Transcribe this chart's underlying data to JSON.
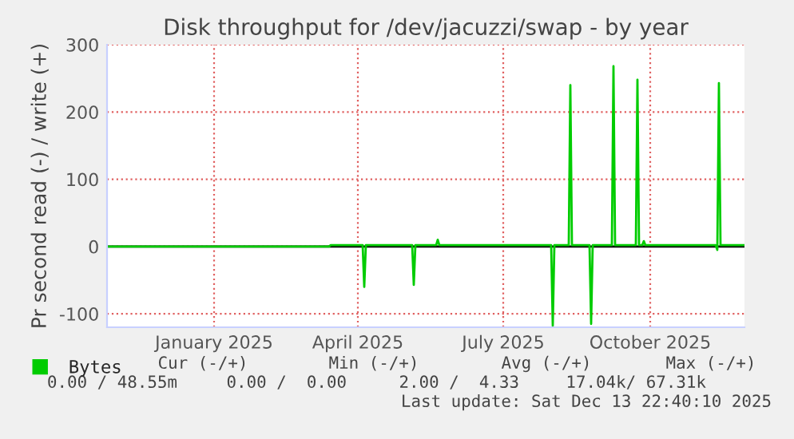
{
  "chart_data": {
    "type": "line",
    "title": "Disk throughput for /dev/jacuzzi/swap - by year",
    "ylabel": "Pr second read (-) / write (+)",
    "series": [
      {
        "name": "Bytes",
        "color": "#00cc00",
        "x": [
          "2024-11-09",
          "2025-03-28",
          "2025-03-29",
          "2025-04-18",
          "2025-04-19",
          "2025-04-20",
          "2025-05-19",
          "2025-05-20",
          "2025-05-21",
          "2025-06-03",
          "2025-06-04",
          "2025-06-05",
          "2025-08-14",
          "2025-08-15",
          "2025-08-16",
          "2025-08-25",
          "2025-08-26",
          "2025-08-27",
          "2025-09-07",
          "2025-09-08",
          "2025-09-09",
          "2025-09-21",
          "2025-09-22",
          "2025-09-23",
          "2025-10-06",
          "2025-10-07",
          "2025-10-08",
          "2025-10-10",
          "2025-10-11",
          "2025-10-12",
          "2025-11-25",
          "2025-11-26",
          "2025-11-27",
          "2025-11-28",
          "2025-12-13"
        ],
        "values": [
          0,
          0,
          2,
          2,
          -60,
          2,
          2,
          -57,
          2,
          2,
          10,
          2,
          2,
          -118,
          2,
          2,
          240,
          2,
          2,
          -115,
          2,
          2,
          268,
          2,
          2,
          248,
          2,
          2,
          8,
          2,
          2,
          -5,
          243,
          2,
          2
        ]
      }
    ],
    "xlim": [
      "2024-11-09",
      "2025-12-13"
    ],
    "xticks": [
      {
        "value": "2025-01-15",
        "label": "January 2025"
      },
      {
        "value": "2025-04-15",
        "label": "April 2025"
      },
      {
        "value": "2025-07-15",
        "label": "July 2025"
      },
      {
        "value": "2025-10-15",
        "label": "October 2025"
      }
    ],
    "ylim": [
      -120,
      300
    ],
    "yticks": [
      -100,
      0,
      100,
      200,
      300
    ],
    "grid": true,
    "legend": "bottom left",
    "ref_lines": [
      {
        "axis": "y",
        "value": 0,
        "color": "#000000"
      }
    ],
    "annotations": [
      "Cur (-/+)",
      "Min (-/+)",
      "Avg (-/+)",
      "Max (-/+)",
      "0.00 / 48.55m",
      "0.00 /  0.00",
      "2.00 /  4.33",
      "17.04k/ 67.31k",
      "Last update: Sat Dec 13 22:40:10 2025"
    ]
  }
}
